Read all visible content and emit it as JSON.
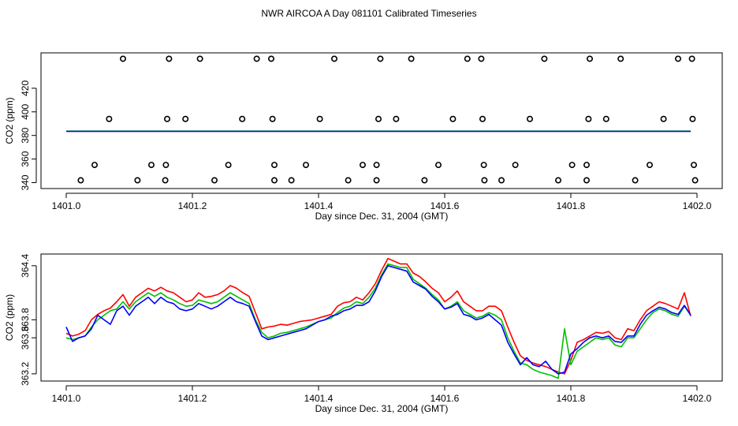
{
  "page_title": "NWR AIRCOA A  Day 081101  Calibrated Timeseries",
  "chart_data": [
    {
      "type": "scatter",
      "id": "top",
      "title": "",
      "xlabel": "Day since Dec. 31, 2004 (GMT)",
      "ylabel": "CO2 (ppm)",
      "xlim": [
        1401.0,
        1402.0
      ],
      "ylim": [
        335,
        450
      ],
      "x_ticks": [
        1401.0,
        1401.2,
        1401.4,
        1401.6,
        1401.8,
        1402.0
      ],
      "x_tick_labels": [
        "1401.0",
        "1401.2",
        "1401.4",
        "1401.6",
        "1401.8",
        "1402.0"
      ],
      "y_ticks": [
        340,
        360,
        380,
        400,
        420
      ],
      "y_tick_labels": [
        "340",
        "360",
        "380",
        "400",
        "420"
      ],
      "points": [
        {
          "x": 1401.09,
          "y": 445
        },
        {
          "x": 1401.163,
          "y": 445
        },
        {
          "x": 1401.212,
          "y": 445
        },
        {
          "x": 1401.302,
          "y": 445
        },
        {
          "x": 1401.325,
          "y": 445
        },
        {
          "x": 1401.425,
          "y": 445
        },
        {
          "x": 1401.498,
          "y": 445
        },
        {
          "x": 1401.547,
          "y": 445
        },
        {
          "x": 1401.636,
          "y": 445
        },
        {
          "x": 1401.658,
          "y": 445
        },
        {
          "x": 1401.758,
          "y": 445
        },
        {
          "x": 1401.83,
          "y": 445
        },
        {
          "x": 1401.879,
          "y": 445
        },
        {
          "x": 1401.97,
          "y": 445
        },
        {
          "x": 1401.992,
          "y": 445
        },
        {
          "x": 1401.068,
          "y": 394
        },
        {
          "x": 1401.16,
          "y": 394
        },
        {
          "x": 1401.189,
          "y": 394
        },
        {
          "x": 1401.279,
          "y": 394
        },
        {
          "x": 1401.327,
          "y": 394
        },
        {
          "x": 1401.402,
          "y": 394
        },
        {
          "x": 1401.495,
          "y": 394
        },
        {
          "x": 1401.523,
          "y": 394
        },
        {
          "x": 1401.613,
          "y": 394
        },
        {
          "x": 1401.66,
          "y": 394
        },
        {
          "x": 1401.735,
          "y": 394
        },
        {
          "x": 1401.828,
          "y": 394
        },
        {
          "x": 1401.856,
          "y": 394
        },
        {
          "x": 1401.947,
          "y": 394
        },
        {
          "x": 1401.993,
          "y": 394
        },
        {
          "x": 1401.045,
          "y": 355
        },
        {
          "x": 1401.135,
          "y": 355
        },
        {
          "x": 1401.158,
          "y": 355
        },
        {
          "x": 1401.257,
          "y": 355
        },
        {
          "x": 1401.33,
          "y": 355
        },
        {
          "x": 1401.38,
          "y": 355
        },
        {
          "x": 1401.47,
          "y": 355
        },
        {
          "x": 1401.492,
          "y": 355
        },
        {
          "x": 1401.59,
          "y": 355
        },
        {
          "x": 1401.662,
          "y": 355
        },
        {
          "x": 1401.712,
          "y": 355
        },
        {
          "x": 1401.802,
          "y": 355
        },
        {
          "x": 1401.825,
          "y": 355
        },
        {
          "x": 1401.925,
          "y": 355
        },
        {
          "x": 1401.995,
          "y": 355
        },
        {
          "x": 1401.023,
          "y": 342
        },
        {
          "x": 1401.113,
          "y": 342
        },
        {
          "x": 1401.157,
          "y": 342
        },
        {
          "x": 1401.235,
          "y": 342
        },
        {
          "x": 1401.33,
          "y": 342
        },
        {
          "x": 1401.357,
          "y": 342
        },
        {
          "x": 1401.447,
          "y": 342
        },
        {
          "x": 1401.492,
          "y": 342
        },
        {
          "x": 1401.568,
          "y": 342
        },
        {
          "x": 1401.663,
          "y": 342
        },
        {
          "x": 1401.69,
          "y": 342
        },
        {
          "x": 1401.78,
          "y": 342
        },
        {
          "x": 1401.825,
          "y": 342
        },
        {
          "x": 1401.902,
          "y": 342
        },
        {
          "x": 1401.997,
          "y": 342
        }
      ],
      "series": [
        {
          "color": "#ff0000",
          "x": [
            1401.0,
            1401.99
          ],
          "values": [
            383.6,
            383.6
          ]
        },
        {
          "color": "#00c000",
          "x": [
            1401.0,
            1401.99
          ],
          "values": [
            383.7,
            383.7
          ]
        },
        {
          "color": "#0000ff",
          "x": [
            1401.0,
            1401.99
          ],
          "values": [
            383.5,
            383.5
          ]
        }
      ]
    },
    {
      "type": "line",
      "id": "bottom",
      "title": "",
      "xlabel": "Day since Dec. 31, 2004 (GMT)",
      "ylabel": "CO2 (ppm)",
      "xlim": [
        1401.0,
        1402.0
      ],
      "ylim": [
        3.1,
        364.55
      ],
      "x_ticks": [
        1401.0,
        1401.2,
        1401.4,
        1401.6,
        1401.8,
        1402.0
      ],
      "x_tick_labels": [
        "1401.0",
        "1401.2",
        "1401.4",
        "1401.6",
        "1401.8",
        "1402.0"
      ],
      "y_ticks": [
        363.2,
        363.6,
        363.8,
        364.4
      ],
      "y_tick_labels": [
        "363.2",
        "363.6",
        "363.8",
        "364.4"
      ],
      "series": [
        {
          "color": "#ff0000",
          "x": [
            1401.0,
            1401.01,
            1401.02,
            1401.03,
            1401.04,
            1401.05,
            1401.06,
            1401.07,
            1401.08,
            1401.09,
            1401.1,
            1401.11,
            1401.12,
            1401.13,
            1401.14,
            1401.15,
            1401.16,
            1401.17,
            1401.18,
            1401.19,
            1401.2,
            1401.21,
            1401.22,
            1401.23,
            1401.24,
            1401.25,
            1401.26,
            1401.27,
            1401.28,
            1401.29,
            1401.3,
            1401.31,
            1401.32,
            1401.33,
            1401.34,
            1401.35,
            1401.36,
            1401.37,
            1401.38,
            1401.39,
            1401.4,
            1401.41,
            1401.42,
            1401.43,
            1401.44,
            1401.45,
            1401.46,
            1401.47,
            1401.48,
            1401.49,
            1401.5,
            1401.51,
            1401.52,
            1401.53,
            1401.54,
            1401.55,
            1401.56,
            1401.57,
            1401.58,
            1401.59,
            1401.6,
            1401.61,
            1401.62,
            1401.63,
            1401.64,
            1401.65,
            1401.66,
            1401.67,
            1401.68,
            1401.69,
            1401.7,
            1401.71,
            1401.72,
            1401.73,
            1401.74,
            1401.75,
            1401.76,
            1401.77,
            1401.78,
            1401.79,
            1401.8,
            1401.81,
            1401.82,
            1401.83,
            1401.84,
            1401.85,
            1401.86,
            1401.87,
            1401.88,
            1401.89,
            1401.9,
            1401.91,
            1401.92,
            1401.93,
            1401.94,
            1401.95,
            1401.96,
            1401.97,
            1401.98,
            1401.99
          ],
          "values": [
            363.65,
            363.62,
            363.64,
            363.68,
            363.8,
            363.86,
            363.9,
            363.93,
            364.0,
            364.08,
            363.95,
            364.05,
            364.1,
            364.15,
            364.12,
            364.16,
            364.12,
            364.1,
            364.05,
            364.0,
            364.02,
            364.1,
            364.05,
            364.06,
            364.08,
            364.12,
            364.18,
            364.15,
            364.1,
            364.06,
            363.88,
            363.7,
            363.72,
            363.73,
            363.75,
            363.74,
            363.76,
            363.78,
            363.79,
            363.8,
            363.82,
            363.84,
            363.86,
            363.95,
            363.99,
            364.0,
            364.05,
            364.02,
            364.1,
            364.2,
            364.35,
            364.48,
            364.45,
            364.42,
            364.42,
            364.32,
            364.28,
            364.22,
            364.15,
            364.1,
            364.0,
            364.05,
            364.12,
            364.0,
            363.95,
            363.9,
            363.9,
            363.95,
            363.95,
            363.9,
            363.72,
            363.55,
            363.4,
            363.35,
            363.32,
            363.3,
            363.28,
            363.25,
            363.22,
            363.2,
            363.35,
            363.55,
            363.58,
            363.62,
            363.66,
            363.65,
            363.67,
            363.6,
            363.58,
            363.7,
            363.68,
            363.8,
            363.9,
            363.95,
            364.0,
            363.98,
            363.95,
            363.92,
            364.1,
            363.84
          ]
        },
        {
          "color": "#00c000",
          "x": [
            1401.0,
            1401.01,
            1401.02,
            1401.03,
            1401.04,
            1401.05,
            1401.06,
            1401.07,
            1401.08,
            1401.09,
            1401.1,
            1401.11,
            1401.12,
            1401.13,
            1401.14,
            1401.15,
            1401.16,
            1401.17,
            1401.18,
            1401.19,
            1401.2,
            1401.21,
            1401.22,
            1401.23,
            1401.24,
            1401.25,
            1401.26,
            1401.27,
            1401.28,
            1401.29,
            1401.3,
            1401.31,
            1401.32,
            1401.33,
            1401.34,
            1401.35,
            1401.36,
            1401.37,
            1401.38,
            1401.39,
            1401.4,
            1401.41,
            1401.42,
            1401.43,
            1401.44,
            1401.45,
            1401.46,
            1401.47,
            1401.48,
            1401.49,
            1401.5,
            1401.51,
            1401.52,
            1401.53,
            1401.54,
            1401.55,
            1401.56,
            1401.57,
            1401.58,
            1401.59,
            1401.6,
            1401.61,
            1401.62,
            1401.63,
            1401.64,
            1401.65,
            1401.66,
            1401.67,
            1401.68,
            1401.69,
            1401.7,
            1401.71,
            1401.72,
            1401.73,
            1401.74,
            1401.75,
            1401.76,
            1401.77,
            1401.78,
            1401.79,
            1401.8,
            1401.81,
            1401.82,
            1401.83,
            1401.84,
            1401.85,
            1401.86,
            1401.87,
            1401.88,
            1401.89,
            1401.9,
            1401.91,
            1401.92,
            1401.93,
            1401.94,
            1401.95,
            1401.96,
            1401.97,
            1401.98,
            1401.99
          ],
          "values": [
            363.6,
            363.58,
            363.6,
            363.62,
            363.72,
            363.8,
            363.85,
            363.9,
            363.92,
            364.0,
            363.92,
            364.0,
            364.05,
            364.1,
            364.06,
            364.1,
            364.05,
            364.02,
            363.98,
            363.95,
            363.96,
            364.02,
            364.0,
            363.98,
            364.0,
            364.05,
            364.1,
            364.06,
            364.02,
            363.98,
            363.8,
            363.66,
            363.6,
            363.62,
            363.65,
            363.66,
            363.68,
            363.7,
            363.72,
            363.75,
            363.78,
            363.8,
            363.82,
            363.88,
            363.93,
            363.95,
            364.0,
            363.98,
            364.05,
            364.15,
            364.3,
            364.42,
            364.4,
            364.38,
            364.38,
            364.25,
            364.2,
            364.15,
            364.08,
            364.02,
            363.92,
            363.95,
            364.0,
            363.9,
            363.86,
            363.82,
            363.84,
            363.88,
            363.85,
            363.8,
            363.6,
            363.45,
            363.32,
            363.3,
            363.25,
            363.22,
            363.2,
            363.18,
            363.15,
            363.7,
            363.3,
            363.45,
            363.5,
            363.55,
            363.6,
            363.58,
            363.6,
            363.52,
            363.5,
            363.6,
            363.6,
            363.7,
            363.8,
            363.88,
            363.92,
            363.9,
            363.86,
            363.84,
            363.95,
            363.85
          ]
        },
        {
          "color": "#0000ff",
          "x": [
            1401.0,
            1401.01,
            1401.02,
            1401.03,
            1401.04,
            1401.05,
            1401.06,
            1401.07,
            1401.08,
            1401.09,
            1401.1,
            1401.11,
            1401.12,
            1401.13,
            1401.14,
            1401.15,
            1401.16,
            1401.17,
            1401.18,
            1401.19,
            1401.2,
            1401.21,
            1401.22,
            1401.23,
            1401.24,
            1401.25,
            1401.26,
            1401.27,
            1401.28,
            1401.29,
            1401.3,
            1401.31,
            1401.32,
            1401.33,
            1401.34,
            1401.35,
            1401.36,
            1401.37,
            1401.38,
            1401.39,
            1401.4,
            1401.41,
            1401.42,
            1401.43,
            1401.44,
            1401.45,
            1401.46,
            1401.47,
            1401.48,
            1401.49,
            1401.5,
            1401.51,
            1401.52,
            1401.53,
            1401.54,
            1401.55,
            1401.56,
            1401.57,
            1401.58,
            1401.59,
            1401.6,
            1401.61,
            1401.62,
            1401.63,
            1401.64,
            1401.65,
            1401.66,
            1401.67,
            1401.68,
            1401.69,
            1401.7,
            1401.71,
            1401.72,
            1401.73,
            1401.74,
            1401.75,
            1401.76,
            1401.77,
            1401.78,
            1401.79,
            1401.8,
            1401.81,
            1401.82,
            1401.83,
            1401.84,
            1401.85,
            1401.86,
            1401.87,
            1401.88,
            1401.89,
            1401.9,
            1401.91,
            1401.92,
            1401.93,
            1401.94,
            1401.95,
            1401.96,
            1401.97,
            1401.98,
            1401.99
          ],
          "values": [
            363.72,
            363.56,
            363.6,
            363.62,
            363.7,
            363.85,
            363.8,
            363.75,
            363.9,
            363.95,
            363.85,
            363.95,
            364.0,
            364.05,
            363.98,
            364.05,
            364.0,
            363.98,
            363.92,
            363.9,
            363.92,
            363.98,
            363.95,
            363.92,
            363.95,
            364.0,
            364.05,
            364.0,
            363.98,
            363.95,
            363.78,
            363.62,
            363.58,
            363.6,
            363.62,
            363.64,
            363.66,
            363.68,
            363.7,
            363.74,
            363.78,
            363.8,
            363.84,
            363.86,
            363.9,
            363.92,
            363.96,
            363.96,
            364.0,
            364.12,
            364.28,
            364.4,
            364.38,
            364.36,
            364.34,
            364.22,
            364.18,
            364.14,
            364.06,
            364.0,
            363.92,
            363.94,
            363.98,
            363.86,
            363.84,
            363.8,
            363.82,
            363.86,
            363.8,
            363.74,
            363.55,
            363.42,
            363.3,
            363.38,
            363.3,
            363.28,
            363.34,
            363.25,
            363.2,
            363.22,
            363.42,
            363.48,
            363.55,
            363.6,
            363.62,
            363.6,
            363.62,
            363.56,
            363.55,
            363.62,
            363.62,
            363.75,
            363.85,
            363.9,
            363.94,
            363.92,
            363.88,
            363.86,
            363.96,
            363.85
          ]
        }
      ]
    }
  ]
}
